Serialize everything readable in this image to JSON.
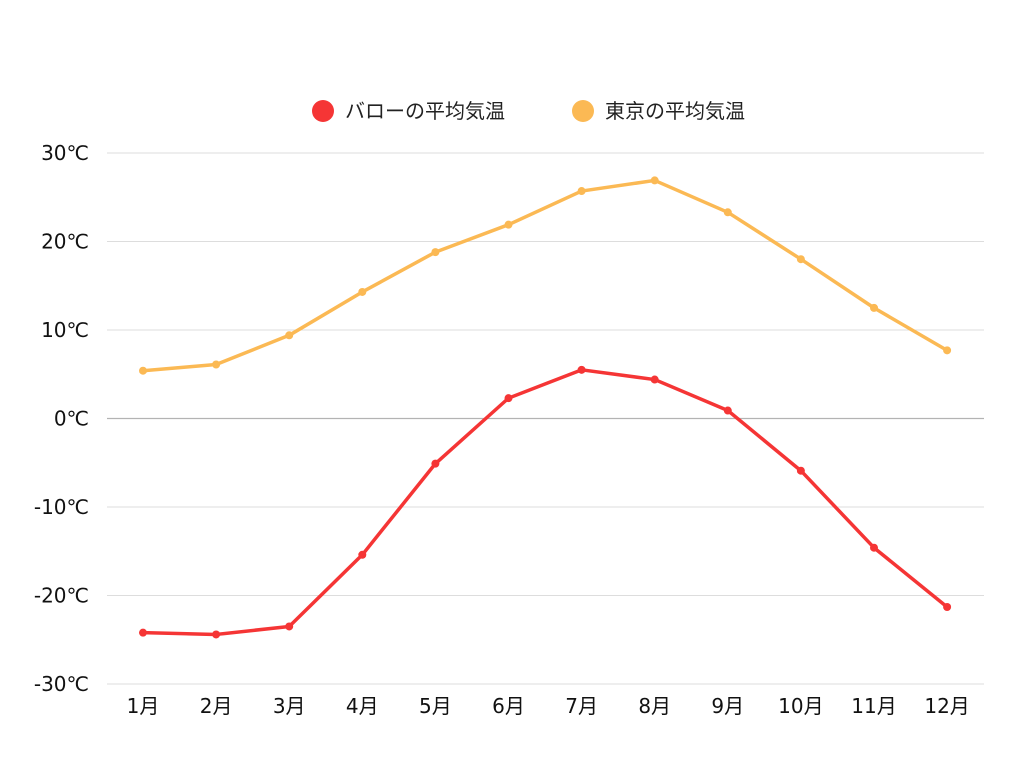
{
  "chart_data": {
    "type": "line",
    "title": "",
    "xlabel": "",
    "ylabel": "",
    "categories": [
      "1月",
      "2月",
      "3月",
      "4月",
      "5月",
      "6月",
      "7月",
      "8月",
      "9月",
      "10月",
      "11月",
      "12月"
    ],
    "series": [
      {
        "name": "バローの平均気温",
        "color": "#f53535",
        "values": [
          -24.2,
          -24.4,
          -23.5,
          -15.4,
          -5.1,
          2.3,
          5.5,
          4.4,
          0.9,
          -5.9,
          -14.6,
          -21.3
        ]
      },
      {
        "name": "東京の平均気温",
        "color": "#fbb954",
        "values": [
          5.4,
          6.1,
          9.4,
          14.3,
          18.8,
          21.9,
          25.7,
          26.9,
          23.3,
          18.0,
          12.5,
          7.7
        ]
      }
    ],
    "ylim": [
      -30,
      30
    ],
    "y_ticks": [
      "30℃",
      "20℃",
      "10℃",
      "0℃",
      "-10℃",
      "-20℃",
      "-30℃"
    ],
    "y_tick_values": [
      30,
      20,
      10,
      0,
      -10,
      -20,
      -30
    ],
    "grid": true,
    "legend_position": "top-center"
  }
}
